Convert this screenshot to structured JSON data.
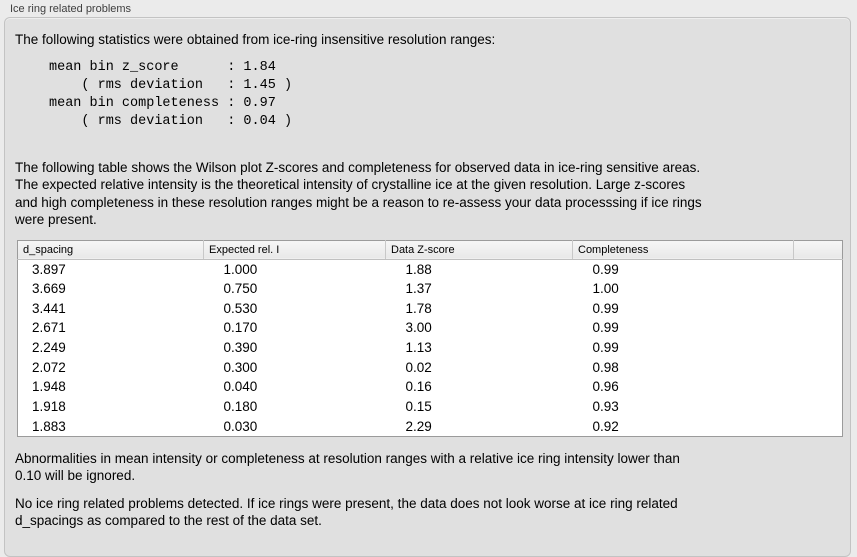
{
  "panel": {
    "title": "Ice ring related problems"
  },
  "intro_text": "The following statistics were obtained from ice-ring insensitive resolution ranges:",
  "stats_block": "mean bin z_score      : 1.84\n    ( rms deviation   : 1.45 )\nmean bin completeness : 0.97\n    ( rms deviation   : 0.04 )",
  "stats_values": {
    "mean_bin_z_score": "1.84",
    "z_score_rms_deviation": "1.45",
    "mean_bin_completeness": "0.97",
    "completeness_rms_deviation": "0.04"
  },
  "description_text": "The following table shows the Wilson plot Z-scores and completeness for observed data in ice-ring sensitive areas.\nThe expected relative intensity is the theoretical intensity of crystalline ice at the given resolution. Large z-scores\nand high completeness in these resolution ranges might be a reason to re-assess your data processsing if ice rings\nwere present.",
  "table": {
    "columns": [
      "d_spacing",
      "Expected rel. I",
      "Data Z-score",
      "Completeness"
    ],
    "rows": [
      [
        "3.897",
        "1.000",
        "1.88",
        "0.99"
      ],
      [
        "3.669",
        "0.750",
        "1.37",
        "1.00"
      ],
      [
        "3.441",
        "0.530",
        "1.78",
        "0.99"
      ],
      [
        "2.671",
        "0.170",
        "3.00",
        "0.99"
      ],
      [
        "2.249",
        "0.390",
        "1.13",
        "0.99"
      ],
      [
        "2.072",
        "0.300",
        "0.02",
        "0.98"
      ],
      [
        "1.948",
        "0.040",
        "0.16",
        "0.96"
      ],
      [
        "1.918",
        "0.180",
        "0.15",
        "0.93"
      ],
      [
        "1.883",
        "0.030",
        "2.29",
        "0.92"
      ]
    ]
  },
  "note_text": "Abnormalities in mean intensity or completeness at resolution ranges with a relative ice ring intensity lower than\n0.10 will be ignored.",
  "conclusion_text": "No ice ring related problems detected. If ice rings were present, the data does not look worse at ice ring related\nd_spacings as compared to the rest of the data set.",
  "colors": {
    "page_background": "#ebebeb",
    "groupbox_background": "#e0e0e0",
    "table_border": "#9b9b9b",
    "table_body_background": "#ffffff",
    "header_background": "#eeeeee"
  }
}
